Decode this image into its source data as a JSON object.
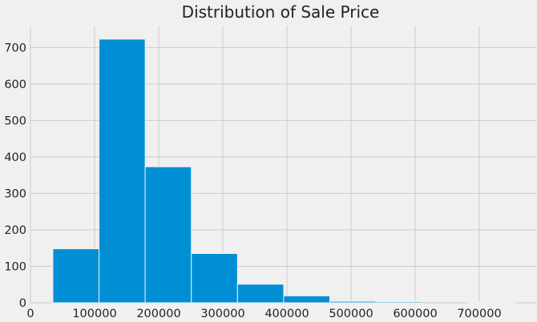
{
  "chart_data": {
    "type": "bar",
    "title": "Distribution of Sale Price",
    "xlabel": "",
    "ylabel": "",
    "xlim": [
      0,
      790000
    ],
    "ylim": [
      0,
      760
    ],
    "grid": true,
    "colors": {
      "bar": "#008fd5",
      "background": "#f0f0f0",
      "grid": "#cbcbcb",
      "text": "#222222"
    },
    "x_ticks": [
      0,
      100000,
      200000,
      300000,
      400000,
      500000,
      600000,
      700000
    ],
    "y_ticks": [
      0,
      100,
      200,
      300,
      400,
      500,
      600,
      700
    ],
    "bins": [
      {
        "start": 34900,
        "end": 106910,
        "count": 148
      },
      {
        "start": 106910,
        "end": 178920,
        "count": 723
      },
      {
        "start": 178920,
        "end": 250930,
        "count": 373
      },
      {
        "start": 250930,
        "end": 322940,
        "count": 135
      },
      {
        "start": 322940,
        "end": 394950,
        "count": 51
      },
      {
        "start": 394950,
        "end": 466960,
        "count": 19
      },
      {
        "start": 466960,
        "end": 538970,
        "count": 4
      },
      {
        "start": 538970,
        "end": 610980,
        "count": 3
      },
      {
        "start": 610980,
        "end": 682990,
        "count": 0
      },
      {
        "start": 682990,
        "end": 755000,
        "count": 2
      }
    ]
  }
}
